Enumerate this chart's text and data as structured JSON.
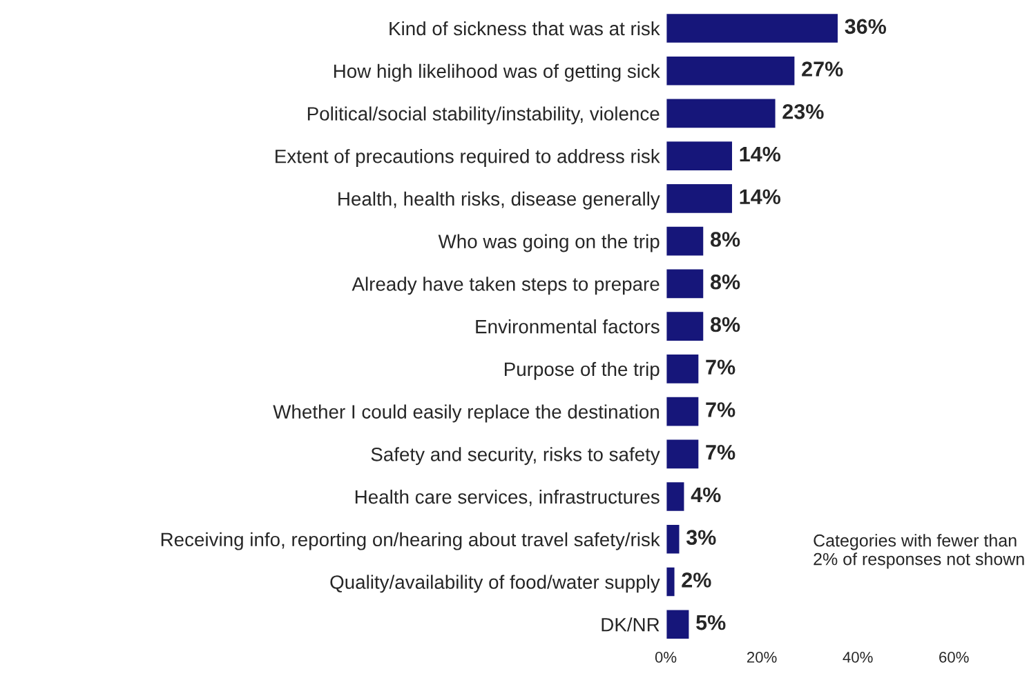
{
  "chart_data": {
    "type": "bar",
    "orientation": "horizontal",
    "categories": [
      "Kind of sickness that was at risk",
      "How high likelihood was of getting sick",
      "Political/social stability/instability, violence",
      "Extent of precautions required to address risk",
      "Health, health risks, disease generally",
      "Who was going on the trip",
      "Already have taken steps to prepare",
      "Environmental factors",
      "Purpose of the trip",
      "Whether I could easily replace the destination",
      "Safety and security, risks to safety",
      "Health care services, infrastructures",
      "Receiving info, reporting on/hearing about travel safety/risk",
      "Quality/availability of food/water supply",
      "DK/NR"
    ],
    "values": [
      36,
      27,
      23,
      14,
      14,
      8,
      8,
      8,
      7,
      7,
      7,
      4,
      3,
      2,
      5
    ],
    "value_labels": [
      "36%",
      "27%",
      "23%",
      "14%",
      "14%",
      "8%",
      "8%",
      "8%",
      "7%",
      "7%",
      "7%",
      "4%",
      "3%",
      "2%",
      "5%"
    ],
    "color": "#16167a",
    "xlim": [
      0,
      60
    ],
    "xticks": [
      {
        "value": 0,
        "label": "0%"
      },
      {
        "value": 20,
        "label": "20%"
      },
      {
        "value": 40,
        "label": "40%"
      },
      {
        "value": 60,
        "label": "60%"
      }
    ],
    "annotations": [
      "Categories with fewer than 2% of responses not shown"
    ]
  }
}
